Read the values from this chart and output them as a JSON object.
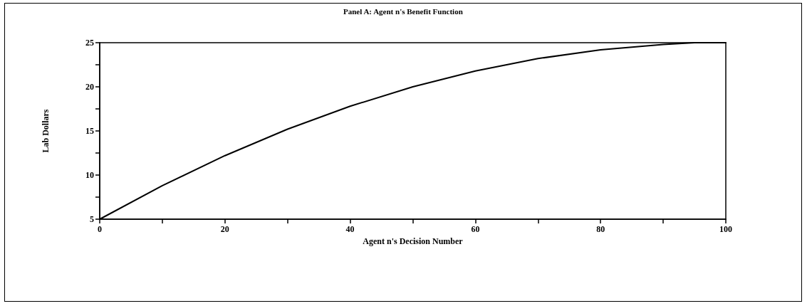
{
  "chart_data": {
    "type": "line",
    "title": "Panel A: Agent n's Benefit Function",
    "xlabel": "Agent n's Decision Number",
    "ylabel": "Lab Dollars",
    "x": [
      0,
      10,
      20,
      30,
      40,
      50,
      60,
      70,
      80,
      90,
      95,
      100
    ],
    "series": [
      {
        "color": "#000000",
        "values": [
          5,
          8.8,
          12.2,
          15.2,
          17.8,
          20.0,
          21.8,
          23.2,
          24.2,
          24.8,
          25,
          25
        ]
      }
    ],
    "xlim": [
      0,
      100
    ],
    "ylim": [
      5,
      25
    ],
    "xticks": [
      0,
      {
        "value": 10,
        "label": null
      },
      20,
      {
        "value": 30,
        "label": null
      },
      40,
      {
        "value": 50,
        "label": null
      },
      60,
      {
        "value": 70,
        "label": null
      },
      80,
      {
        "value": 90,
        "label": null
      },
      100
    ],
    "yticks": [
      5,
      {
        "value": 7.5,
        "label": null
      },
      10,
      {
        "value": 12.5,
        "label": null
      },
      15,
      {
        "value": 17.5,
        "label": null
      },
      20,
      {
        "value": 22.5,
        "label": null
      },
      25
    ],
    "grid": false,
    "marker": "none",
    "line_style": "solid"
  }
}
